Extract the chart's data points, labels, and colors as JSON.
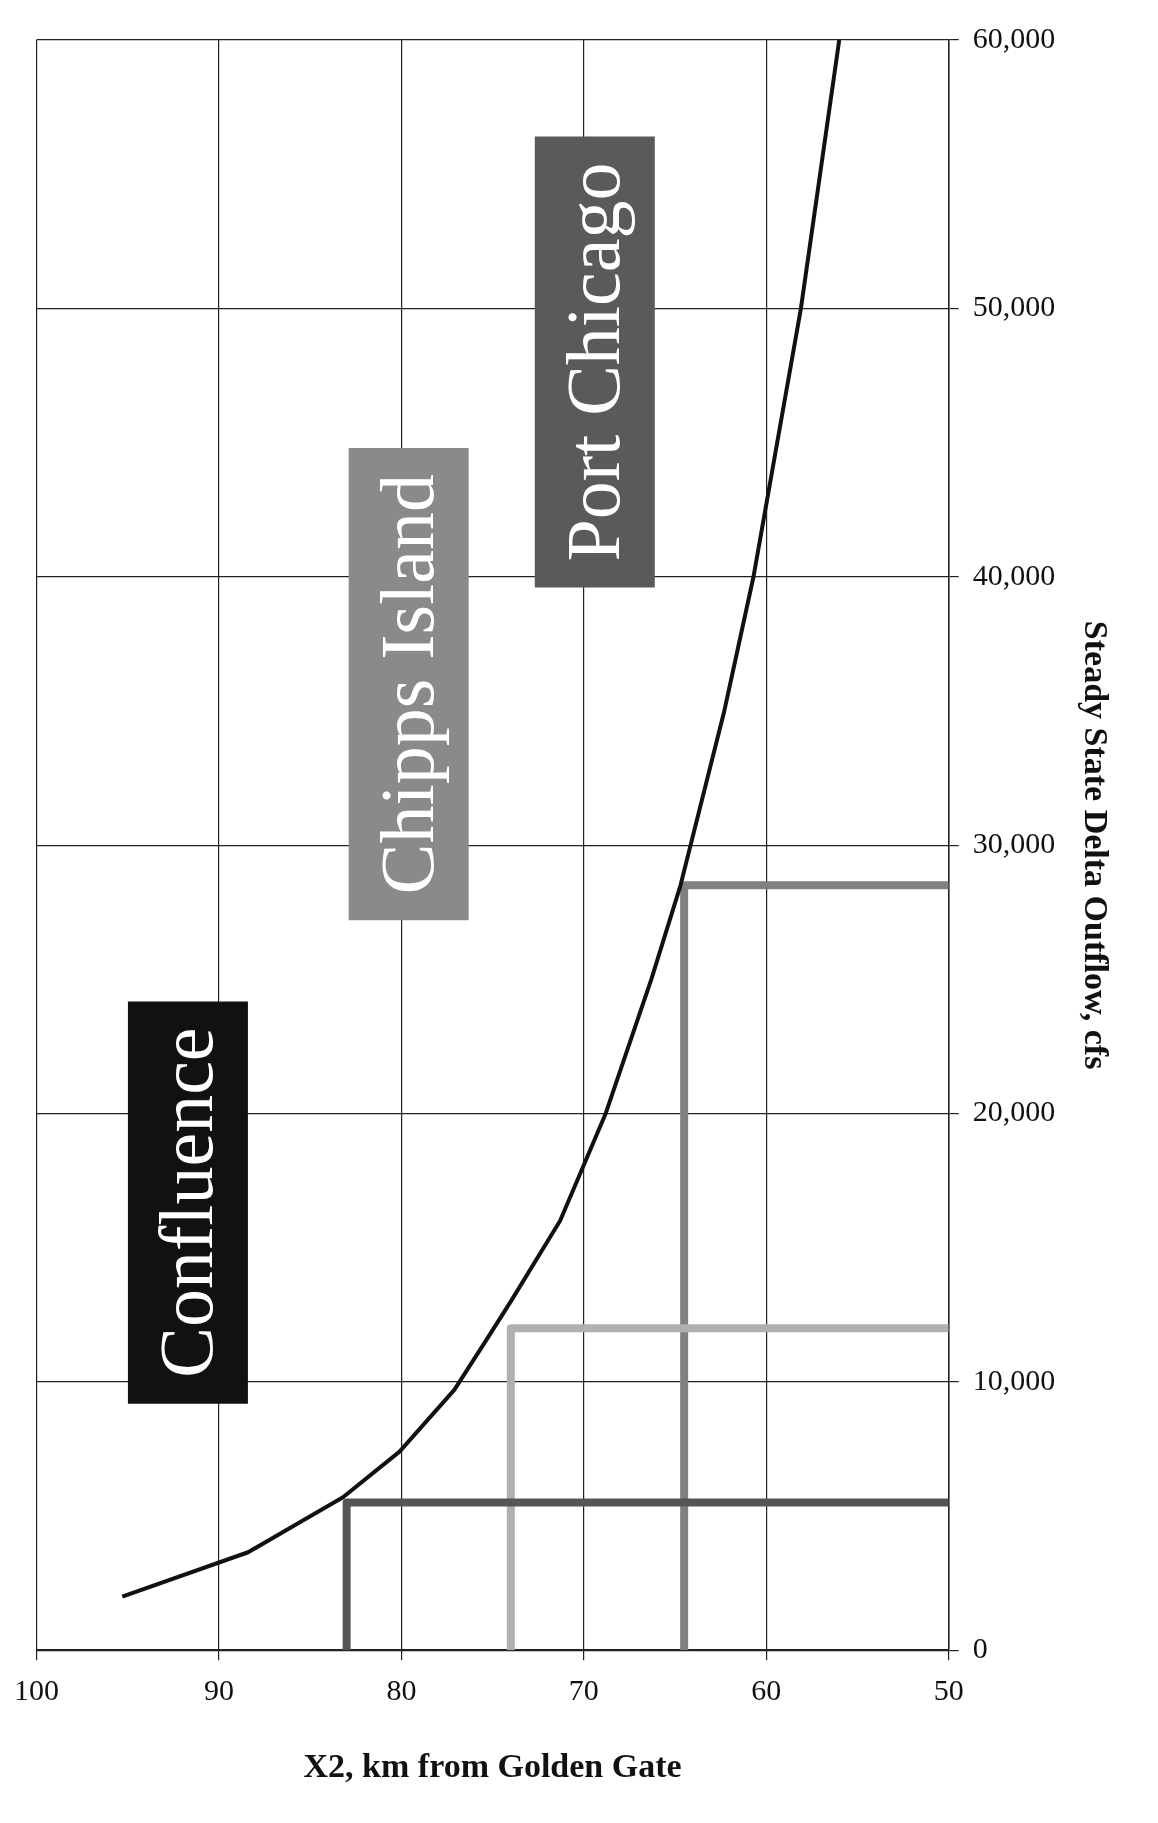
{
  "chart_data": {
    "type": "line",
    "xlabel": "X2, km from Golden Gate",
    "ylabel": "Steady State Delta Outflow, cfs",
    "xlim": [
      100,
      50
    ],
    "xticks": [
      100,
      90,
      80,
      70,
      60,
      50
    ],
    "ylim": [
      0,
      60000
    ],
    "yticks": [
      0,
      {
        "value": 10000,
        "label": "10,000"
      },
      {
        "value": 20000,
        "label": "20,000"
      },
      {
        "value": 30000,
        "label": "30,000"
      },
      {
        "value": 40000,
        "label": "40,000"
      },
      {
        "value": 50000,
        "label": "50,000"
      },
      {
        "value": 60000,
        "label": "60,000"
      }
    ],
    "grid": true,
    "legend": false,
    "marker": "none",
    "series": [
      {
        "color": "#111111",
        "x": [
          95.3,
          88.4,
          83.2,
          80.1,
          77.1,
          75.4,
          74,
          71.3,
          68.8,
          66.3,
          64.7,
          62.3,
          60.7,
          58.1,
          56
        ],
        "values": [
          2000,
          3650,
          5700,
          7400,
          9700,
          11500,
          13000,
          16000,
          20000,
          25000,
          28500,
          35000,
          40000,
          50000,
          60000
        ]
      },
      {
        "color": "#555555",
        "x": [
          83,
          83,
          50
        ],
        "values": [
          0,
          5500,
          5500
        ]
      },
      {
        "color": "#b0b0b0",
        "x": [
          74,
          74,
          50
        ],
        "values": [
          0,
          12000,
          12000
        ]
      },
      {
        "color": "#808080",
        "x": [
          64.5,
          64.5,
          50
        ],
        "values": [
          0,
          28500,
          28500
        ]
      }
    ],
    "annotations": [
      "Confluence",
      "Chipps Island",
      "Port Chicago"
    ]
  }
}
